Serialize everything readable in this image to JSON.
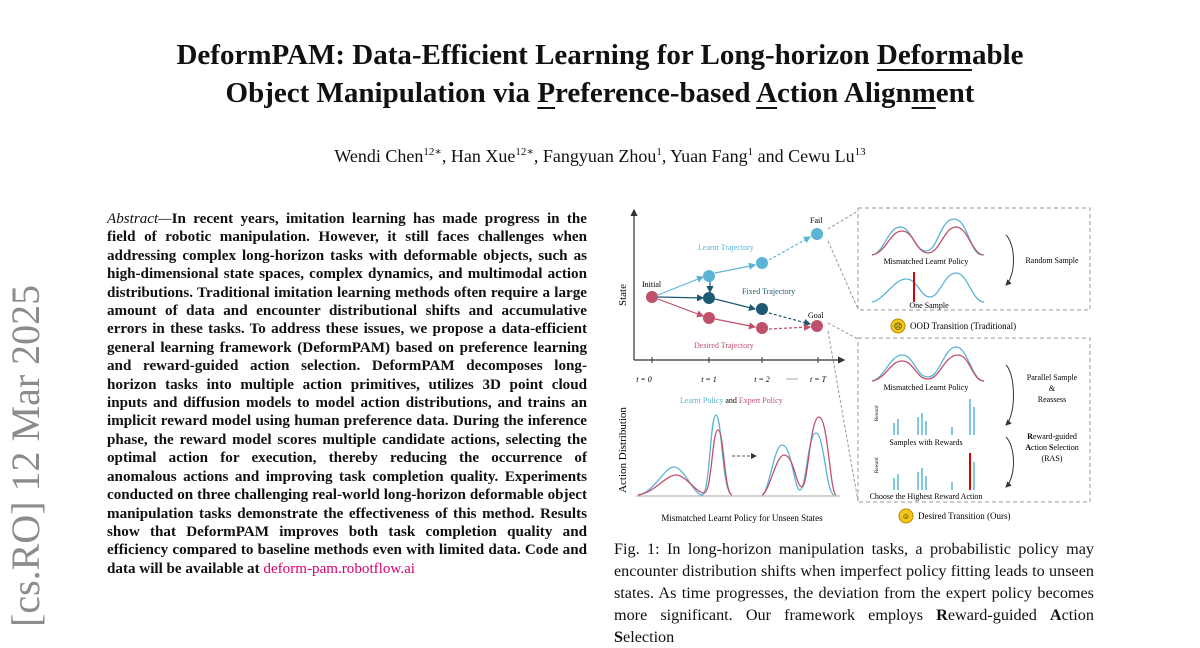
{
  "paper": {
    "title_segments": [
      {
        "text": "DeformPAM: Data-Efficient Learning for Long-horizon ",
        "u": false
      },
      {
        "text": "Deform",
        "u": true
      },
      {
        "text": "able",
        "u": false
      },
      {
        "text": "\n",
        "u": false
      },
      {
        "text": "Object Manipulation via ",
        "u": false
      },
      {
        "text": "P",
        "u": true
      },
      {
        "text": "reference-based ",
        "u": false
      },
      {
        "text": "A",
        "u": true
      },
      {
        "text": "ction Align",
        "u": false
      },
      {
        "text": "m",
        "u": true
      },
      {
        "text": "ent",
        "u": false
      }
    ],
    "authors": [
      {
        "name": "Wendi Chen",
        "aff": "12∗",
        "sep": ", "
      },
      {
        "name": "Han Xue",
        "aff": "12∗",
        "sep": ", "
      },
      {
        "name": "Fangyuan Zhou",
        "aff": "1",
        "sep": ", "
      },
      {
        "name": "Yuan Fang",
        "aff": "1",
        "sep": " and "
      },
      {
        "name": "Cewu Lu",
        "aff": "13",
        "sep": ""
      }
    ],
    "arxiv_stamp": "[cs.RO]  12 Mar 2025",
    "abstract_lead": "Abstract—",
    "abstract_body": "In recent years, imitation learning has made progress in the field of robotic manipulation. However, it still faces challenges when addressing complex long-horizon tasks with deformable objects, such as high-dimensional state spaces, complex dynamics, and multimodal action distributions. Traditional imitation learning methods often require a large amount of data and encounter distributional shifts and accumulative errors in these tasks. To address these issues, we propose a data-efficient general learning framework (DeformPAM) based on preference learning and reward-guided action selection. DeformPAM decomposes long-horizon tasks into multiple action primitives, utilizes 3D point cloud inputs and diffusion models to model action distributions, and trains an implicit reward model using human preference data. During the inference phase, the reward model scores multiple candidate actions, selecting the optimal action for execution, thereby reducing the occurrence of anomalous actions and improving task completion quality. Experiments conducted on three challenging real-world long-horizon deformable object manipulation tasks demonstrate the effectiveness of this method. Results show that DeformPAM improves both task completion quality and efficiency compared to baseline methods even with limited data. Code and data will be available at ",
    "abstract_link": "deform-pam.robotflow.ai",
    "caption_segments": [
      {
        "text": "Fig. 1: In long-horizon manipulation tasks, a probabilistic policy may encounter distribution shifts when imperfect policy fitting leads to unseen states. As time progresses, the deviation from the expert policy becomes more significant. Our framework employs ",
        "b": false
      },
      {
        "text": "R",
        "b": true
      },
      {
        "text": "eward-guided ",
        "b": false
      },
      {
        "text": "A",
        "b": true
      },
      {
        "text": "ction ",
        "b": false
      },
      {
        "text": "S",
        "b": true
      },
      {
        "text": "election",
        "b": false
      }
    ]
  },
  "figure": {
    "state_axis": "State",
    "action_axis": "Action Distribution",
    "time_labels": [
      "t = 0",
      "t = 1",
      "t = 2",
      "······",
      "t = T"
    ],
    "initial": "Initial",
    "fail": "Fail",
    "goal": "Goal",
    "learnt_trajectory": "Learnt Trajectory",
    "fixed_trajectory": "Fixed Trajectory",
    "desired_trajectory": "Desired Trajectory",
    "legend_learnt": "Learnt Policy",
    "legend_and": " and ",
    "legend_expert": "Expert Policy",
    "bottom_caption": "Mismatched Learnt Policy for Unseen States",
    "top_panel_label1": "Mismatched Learnt Policy",
    "top_panel_random": "Random Sample",
    "top_panel_one": "One Sample",
    "ood": "OOD Transition (Traditional)",
    "mid_label": "Mismatched Learnt Policy",
    "parallel": "Parallel Sample",
    "amp": "&",
    "reassess": "Reassess",
    "samples_rewards": "Samples with Rewards",
    "ras_1a": "R",
    "ras_1b": "eward-guided",
    "ras_2a": "A",
    "ras_2b": "ction ",
    "ras_2c": "S",
    "ras_2d": "election",
    "ras_3": "(RAS)",
    "choose": "Choose the Highest Reward Action",
    "desired_transition": "Desired Transition (Ours)",
    "reward_axis": "Reward",
    "colors": {
      "blue": "#5bb4d6",
      "dark": "#1d5a72",
      "red": "#c0516b",
      "dash": "#999999"
    }
  }
}
